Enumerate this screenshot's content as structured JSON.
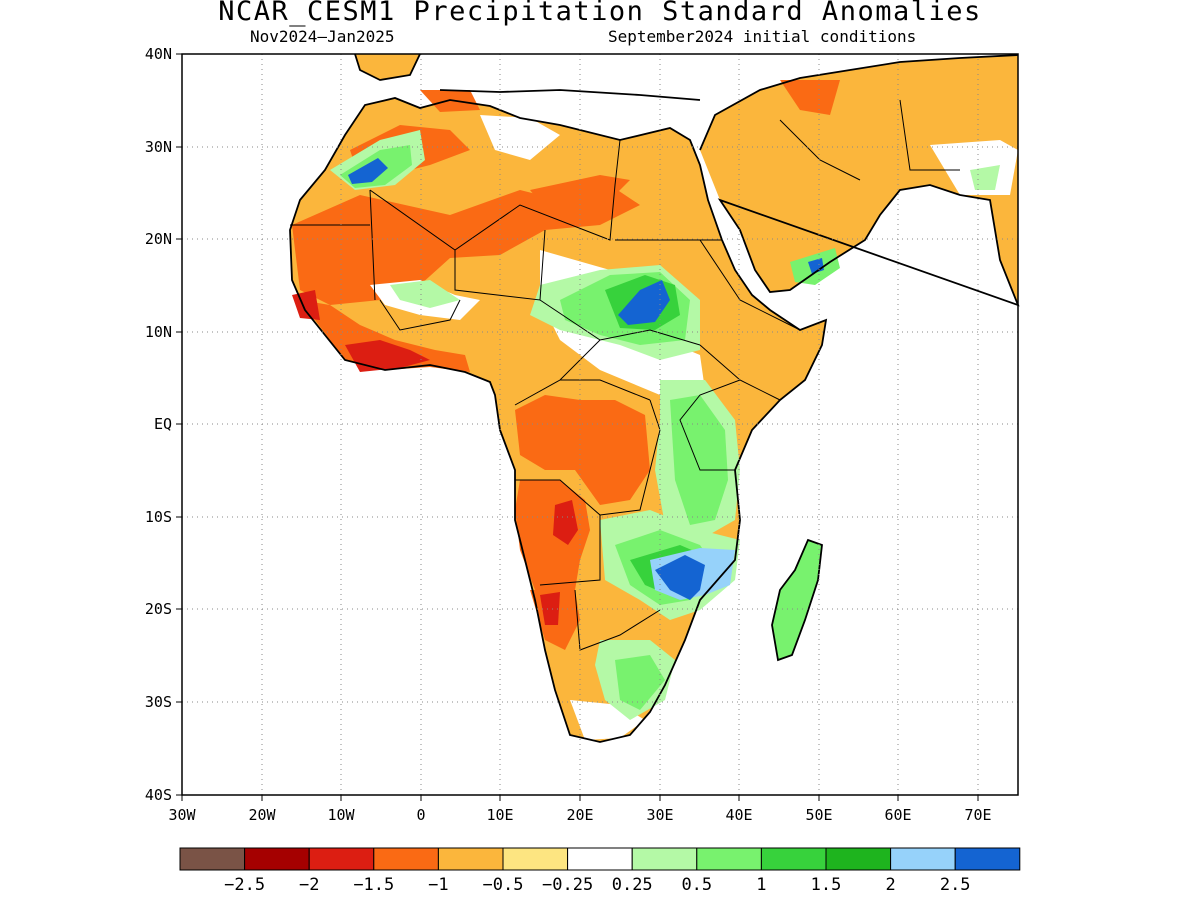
{
  "header": {
    "title": "NCAR_CESM1 Precipitation Standard Anomalies",
    "period": "Nov2024–Jan2025",
    "init": "September2024 initial conditions"
  },
  "axes": {
    "y_labels": [
      "40N",
      "30N",
      "20N",
      "10N",
      "EQ",
      "10S",
      "20S",
      "30S",
      "40S"
    ],
    "y_values": [
      40,
      30,
      20,
      10,
      0,
      -10,
      -20,
      -30,
      -40
    ],
    "x_labels": [
      "30W",
      "20W",
      "10W",
      "0",
      "10E",
      "20E",
      "30E",
      "40E",
      "50E",
      "60E",
      "70E"
    ],
    "x_values": [
      -30,
      -20,
      -10,
      0,
      10,
      20,
      30,
      40,
      50,
      60,
      70
    ],
    "lon_range": [
      -30,
      75
    ],
    "lat_range": [
      -40,
      40
    ],
    "grid": "dotted"
  },
  "colorbar": {
    "colors": [
      "#7a5346",
      "#a50000",
      "#dc1e12",
      "#fa6a14",
      "#fbb63c",
      "#fde581",
      "#ffffff",
      "#b4f9a6",
      "#78f26e",
      "#37d23c",
      "#1eb41e",
      "#96d2fa",
      "#1464d2"
    ],
    "labels": [
      "−2.5",
      "−2",
      "−1.5",
      "−1",
      "−0.5",
      "−0.25",
      "0.25",
      "0.5",
      "1",
      "1.5",
      "2",
      "2.5"
    ]
  },
  "colors": {
    "land_base": "#fbb63c",
    "strong_dry": "#fa6a14",
    "very_dry": "#dc1e12",
    "neutral": "#ffffff",
    "wet_light": "#b4f9a6",
    "wet": "#78f26e",
    "wet_strong": "#37d23c",
    "very_wet": "#1464d2",
    "wet_blue_light": "#96d2fa"
  }
}
